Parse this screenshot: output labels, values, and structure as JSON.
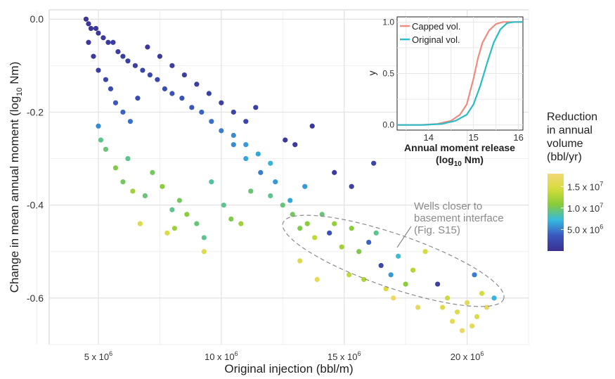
{
  "chart_data": [
    {
      "type": "scatter",
      "xlabel": "Original injection (bbl/m)",
      "ylabel": "Change in mean annual moment (log",
      "ylabel_sub": "10",
      "ylabel_tail": " Nm)",
      "xlim": [
        3000000,
        22500000
      ],
      "ylim": [
        -0.7,
        0.02
      ],
      "x_ticks": [
        {
          "value": 5000000,
          "base": "5 x 10",
          "exp": "6"
        },
        {
          "value": 10000000,
          "base": "10 x 10",
          "exp": "6"
        },
        {
          "value": 15000000,
          "base": "15 x 10",
          "exp": "6"
        },
        {
          "value": 20000000,
          "base": "20 x 10",
          "exp": "6"
        }
      ],
      "y_ticks": [
        {
          "value": 0.0,
          "label": "0.0"
        },
        {
          "value": -0.2,
          "label": "-0.2"
        },
        {
          "value": -0.4,
          "label": "-0.4"
        },
        {
          "value": -0.6,
          "label": "-0.6"
        }
      ],
      "grid": true,
      "colorbar": {
        "title": [
          "Reduction",
          "in annual",
          "volume",
          "(bbl/yr)"
        ],
        "range": [
          0,
          18000000
        ],
        "colors": [
          "#3b2f8f",
          "#3a58c0",
          "#35b9e0",
          "#86cc3a",
          "#d4dc3a",
          "#f5d77a"
        ],
        "ticks": [
          {
            "value": 5000000,
            "base": "5.0 x 10",
            "exp": "6"
          },
          {
            "value": 10000000,
            "base": "1.0 x 10",
            "exp": "7"
          },
          {
            "value": 15000000,
            "base": "1.5 x 10",
            "exp": "7"
          }
        ]
      },
      "annotation": {
        "lines": [
          "Wells closer to",
          "basement interface",
          "(Fig. S15)"
        ],
        "ellipse_center": [
          17000000,
          -0.52
        ],
        "color": "#8a8a8a"
      },
      "points": [
        {
          "x": 4500000.0,
          "y": 0.0,
          "c": 500000.0
        },
        {
          "x": 4600000.0,
          "y": -0.01,
          "c": 600000.0
        },
        {
          "x": 4700000.0,
          "y": -0.02,
          "c": 500000.0
        },
        {
          "x": 4900000.0,
          "y": -0.02,
          "c": 700000.0
        },
        {
          "x": 5000000.0,
          "y": -0.03,
          "c": 800000.0
        },
        {
          "x": 5200000.0,
          "y": -0.04,
          "c": 900000.0
        },
        {
          "x": 5400000.0,
          "y": -0.05,
          "c": 1000000.0
        },
        {
          "x": 5600000.0,
          "y": -0.05,
          "c": 1100000.0
        },
        {
          "x": 5800000.0,
          "y": -0.07,
          "c": 1200000.0
        },
        {
          "x": 6000000.0,
          "y": -0.08,
          "c": 1300000.0
        },
        {
          "x": 6200000.0,
          "y": -0.09,
          "c": 1400000.0
        },
        {
          "x": 6500000.0,
          "y": -0.1,
          "c": 1600000.0
        },
        {
          "x": 6800000.0,
          "y": -0.11,
          "c": 1800000.0
        },
        {
          "x": 7100000.0,
          "y": -0.12,
          "c": 2000000.0
        },
        {
          "x": 7400000.0,
          "y": -0.13,
          "c": 2200000.0
        },
        {
          "x": 7700000.0,
          "y": -0.15,
          "c": 2600000.0
        },
        {
          "x": 8000000.0,
          "y": -0.16,
          "c": 3000000.0
        },
        {
          "x": 8400000.0,
          "y": -0.17,
          "c": 3200000.0
        },
        {
          "x": 8800000.0,
          "y": -0.19,
          "c": 3500000.0
        },
        {
          "x": 9200000.0,
          "y": -0.2,
          "c": 4000000.0
        },
        {
          "x": 9600000.0,
          "y": -0.22,
          "c": 4500000.0
        },
        {
          "x": 10000000.0,
          "y": -0.24,
          "c": 5000000.0
        },
        {
          "x": 10500000.0,
          "y": -0.25,
          "c": 5500000.0
        },
        {
          "x": 11000000.0,
          "y": -0.27,
          "c": 6000000.0
        },
        {
          "x": 11500000.0,
          "y": -0.29,
          "c": 6500000.0
        },
        {
          "x": 12000000.0,
          "y": -0.31,
          "c": 7000000.0
        },
        {
          "x": 4600000.0,
          "y": -0.05,
          "c": 800000.0
        },
        {
          "x": 4800000.0,
          "y": -0.08,
          "c": 1000000.0
        },
        {
          "x": 5000000.0,
          "y": -0.11,
          "c": 1200000.0
        },
        {
          "x": 5300000.0,
          "y": -0.13,
          "c": 2000000.0
        },
        {
          "x": 5500000.0,
          "y": -0.15,
          "c": 2500000.0
        },
        {
          "x": 5700000.0,
          "y": -0.18,
          "c": 3500000.0
        },
        {
          "x": 6000000.0,
          "y": -0.2,
          "c": 4000000.0
        },
        {
          "x": 6300000.0,
          "y": -0.22,
          "c": 4500000.0
        },
        {
          "x": 6600000.0,
          "y": -0.17,
          "c": 2500000.0
        },
        {
          "x": 7000000.0,
          "y": -0.06,
          "c": 800000.0
        },
        {
          "x": 7500000.0,
          "y": -0.08,
          "c": 1000000.0
        },
        {
          "x": 8000000.0,
          "y": -0.1,
          "c": 1200000.0
        },
        {
          "x": 8500000.0,
          "y": -0.12,
          "c": 1300000.0
        },
        {
          "x": 9000000.0,
          "y": -0.14,
          "c": 1400000.0
        },
        {
          "x": 9500000.0,
          "y": -0.16,
          "c": 1500000.0
        },
        {
          "x": 10000000.0,
          "y": -0.18,
          "c": 1600000.0
        },
        {
          "x": 10500000.0,
          "y": -0.2,
          "c": 1800000.0
        },
        {
          "x": 11000000.0,
          "y": -0.22,
          "c": 2000000.0
        },
        {
          "x": 11400000.0,
          "y": -0.19,
          "c": 1500000.0
        },
        {
          "x": 10500000.0,
          "y": -0.27,
          "c": 5500000.0
        },
        {
          "x": 11000000.0,
          "y": -0.3,
          "c": 6500000.0
        },
        {
          "x": 11600000.0,
          "y": -0.33,
          "c": 5000000.0
        },
        {
          "x": 12200000.0,
          "y": -0.35,
          "c": 6000000.0
        },
        {
          "x": 12600000.0,
          "y": -0.26,
          "c": 800000.0
        },
        {
          "x": 13000000.0,
          "y": -0.27,
          "c": 1000000.0
        },
        {
          "x": 13700000.0,
          "y": -0.23,
          "c": 900000.0
        },
        {
          "x": 5000000.0,
          "y": -0.23,
          "c": 5500000.0
        },
        {
          "x": 5100000.0,
          "y": -0.26,
          "c": 9000000.0
        },
        {
          "x": 5300000.0,
          "y": -0.28,
          "c": 9500000.0
        },
        {
          "x": 5700000.0,
          "y": -0.32,
          "c": 10500000.0
        },
        {
          "x": 6000000.0,
          "y": -0.35,
          "c": 10000000.0
        },
        {
          "x": 6400000.0,
          "y": -0.37,
          "c": 12000000.0
        },
        {
          "x": 6200000.0,
          "y": -0.3,
          "c": 9000000.0
        },
        {
          "x": 6900000.0,
          "y": -0.38,
          "c": 9500000.0
        },
        {
          "x": 7200000.0,
          "y": -0.33,
          "c": 10000000.0
        },
        {
          "x": 7600000.0,
          "y": -0.36,
          "c": 11000000.0
        },
        {
          "x": 8000000.0,
          "y": -0.41,
          "c": 9000000.0
        },
        {
          "x": 8100000.0,
          "y": -0.45,
          "c": 12000000.0
        },
        {
          "x": 8300000.0,
          "y": -0.39,
          "c": 10000000.0
        },
        {
          "x": 8600000.0,
          "y": -0.42,
          "c": 11000000.0
        },
        {
          "x": 9000000.0,
          "y": -0.44,
          "c": 9500000.0
        },
        {
          "x": 9300000.0,
          "y": -0.47,
          "c": 9000000.0
        },
        {
          "x": 9600000.0,
          "y": -0.35,
          "c": 8500000.0
        },
        {
          "x": 10100000.0,
          "y": -0.4,
          "c": 9000000.0
        },
        {
          "x": 10400000.0,
          "y": -0.43,
          "c": 10500000.0
        },
        {
          "x": 10800000.0,
          "y": -0.44,
          "c": 12000000.0
        },
        {
          "x": 11200000.0,
          "y": -0.37,
          "c": 9500000.0
        },
        {
          "x": 6700000.0,
          "y": -0.44,
          "c": 15500000.0
        },
        {
          "x": 7800000.0,
          "y": -0.46,
          "c": 15000000.0
        },
        {
          "x": 9300000.0,
          "y": -0.5,
          "c": 15500000.0
        },
        {
          "x": 12000000.0,
          "y": -0.38,
          "c": 9000000.0
        },
        {
          "x": 12500000.0,
          "y": -0.4,
          "c": 9500000.0
        },
        {
          "x": 12900000.0,
          "y": -0.42,
          "c": 10000000.0
        },
        {
          "x": 13200000.0,
          "y": -0.45,
          "c": 10500000.0
        },
        {
          "x": 13500000.0,
          "y": -0.44,
          "c": 11000000.0
        },
        {
          "x": 13800000.0,
          "y": -0.47,
          "c": 13500000.0
        },
        {
          "x": 14100000.0,
          "y": -0.42,
          "c": 9500000.0
        },
        {
          "x": 14400000.0,
          "y": -0.46,
          "c": 3000000.0
        },
        {
          "x": 14600000.0,
          "y": -0.44,
          "c": 11500000.0
        },
        {
          "x": 14900000.0,
          "y": -0.49,
          "c": 12000000.0
        },
        {
          "x": 15300000.0,
          "y": -0.45,
          "c": 11000000.0
        },
        {
          "x": 15600000.0,
          "y": -0.5,
          "c": 10500000.0
        },
        {
          "x": 16000000.0,
          "y": -0.48,
          "c": 4000000.0
        },
        {
          "x": 16300000.0,
          "y": -0.46,
          "c": 9000000.0
        },
        {
          "x": 16500000.0,
          "y": -0.53,
          "c": 2000000.0
        },
        {
          "x": 16900000.0,
          "y": -0.55,
          "c": 6000000.0
        },
        {
          "x": 17200000.0,
          "y": -0.51,
          "c": 7500000.0
        },
        {
          "x": 17500000.0,
          "y": -0.57,
          "c": 11000000.0
        },
        {
          "x": 17800000.0,
          "y": -0.54,
          "c": 13000000.0
        },
        {
          "x": 18300000.0,
          "y": -0.5,
          "c": 14500000.0
        },
        {
          "x": 15800000.0,
          "y": -0.56,
          "c": 12500000.0
        },
        {
          "x": 13200000.0,
          "y": -0.52,
          "c": 15000000.0
        },
        {
          "x": 13900000.0,
          "y": -0.56,
          "c": 16000000.0
        },
        {
          "x": 15200000.0,
          "y": -0.55,
          "c": 13500000.0
        },
        {
          "x": 16700000.0,
          "y": -0.58,
          "c": 15000000.0
        },
        {
          "x": 17000000.0,
          "y": -0.6,
          "c": 17000000.0
        },
        {
          "x": 18000000.0,
          "y": -0.62,
          "c": 16500000.0
        },
        {
          "x": 18800000.0,
          "y": -0.57,
          "c": 1500000.0
        },
        {
          "x": 19200000.0,
          "y": -0.6,
          "c": 14000000.0
        },
        {
          "x": 19600000.0,
          "y": -0.63,
          "c": 15500000.0
        },
        {
          "x": 20000000.0,
          "y": -0.61,
          "c": 16000000.0
        },
        {
          "x": 20400000.0,
          "y": -0.64,
          "c": 15000000.0
        },
        {
          "x": 20800000.0,
          "y": -0.62,
          "c": 16500000.0
        },
        {
          "x": 21100000.0,
          "y": -0.6,
          "c": 7000000.0
        },
        {
          "x": 20200000.0,
          "y": -0.66,
          "c": 16500000.0
        },
        {
          "x": 19800000.0,
          "y": -0.67,
          "c": 17000000.0
        },
        {
          "x": 19400000.0,
          "y": -0.65,
          "c": 16000000.0
        },
        {
          "x": 20600000.0,
          "y": -0.59,
          "c": 14500000.0
        },
        {
          "x": 19000000.0,
          "y": -0.62,
          "c": 15500000.0
        },
        {
          "x": 20300000.0,
          "y": -0.55,
          "c": 5000000.0
        },
        {
          "x": 16200000.0,
          "y": -0.31,
          "c": 2000000.0
        },
        {
          "x": 15300000.0,
          "y": -0.36,
          "c": 1500000.0
        },
        {
          "x": 14600000.0,
          "y": -0.33,
          "c": 1000000.0
        },
        {
          "x": 12800000.0,
          "y": -0.39,
          "c": 6500000.0
        },
        {
          "x": 13400000.0,
          "y": -0.36,
          "c": 6000000.0
        }
      ]
    },
    {
      "type": "line",
      "xlabel": "Annual moment release",
      "xlabel2": "(log",
      "xlabel2_sub": "10",
      "xlabel2_tail": " Nm)",
      "ylabel": "y",
      "xlim": [
        13.3,
        16.1
      ],
      "ylim": [
        -0.05,
        1.05
      ],
      "x_ticks": [
        "14",
        "15",
        "16"
      ],
      "y_ticks": [
        "0.0",
        "0.5",
        "1.0"
      ],
      "grid": true,
      "legend": "top-left",
      "series": [
        {
          "name": "Capped vol.",
          "color": "#ef8a7d",
          "x": [
            13.3,
            13.8,
            14.2,
            14.5,
            14.7,
            14.85,
            15.0,
            15.1,
            15.2,
            15.35,
            15.5,
            15.65,
            16.1
          ],
          "y": [
            0.0,
            0.0,
            0.01,
            0.04,
            0.1,
            0.2,
            0.45,
            0.65,
            0.8,
            0.92,
            0.98,
            1.0,
            1.0
          ]
        },
        {
          "name": "Original vol.",
          "color": "#2bbcc6",
          "x": [
            13.3,
            13.9,
            14.3,
            14.6,
            14.85,
            15.0,
            15.15,
            15.3,
            15.45,
            15.6,
            15.75,
            15.9,
            16.1
          ],
          "y": [
            0.0,
            0.0,
            0.01,
            0.04,
            0.1,
            0.2,
            0.38,
            0.6,
            0.8,
            0.93,
            0.99,
            1.0,
            1.0
          ]
        }
      ]
    }
  ]
}
